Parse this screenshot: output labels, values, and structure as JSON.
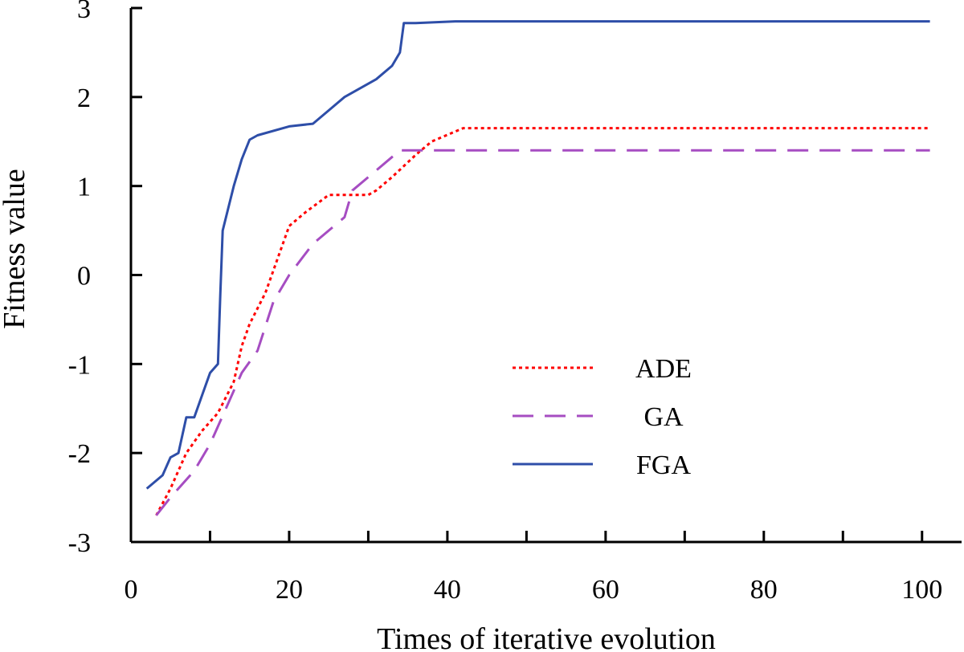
{
  "chart_data": {
    "type": "line",
    "title": "",
    "xlabel": "Times of iterative evolution",
    "ylabel": "Fitness value",
    "xlim": [
      0,
      105
    ],
    "ylim": [
      -3,
      3
    ],
    "xticks": [
      0,
      20,
      40,
      60,
      80,
      100
    ],
    "xtick_labels": [
      "0",
      "20",
      "40",
      "60",
      "80",
      "100"
    ],
    "yticks": [
      -3,
      -2,
      -1,
      0,
      1,
      2,
      3
    ],
    "ytick_labels": [
      "-3",
      "-2",
      "-1",
      "0",
      "1",
      "2",
      "3"
    ],
    "grid": false,
    "legend_position": "lower-right",
    "series": [
      {
        "name": "ADE",
        "color": "#ff0000",
        "style": "dotted",
        "points": [
          [
            3.2,
            -2.7
          ],
          [
            5,
            -2.4
          ],
          [
            7,
            -2.0
          ],
          [
            9,
            -1.75
          ],
          [
            11,
            -1.55
          ],
          [
            13,
            -1.2
          ],
          [
            14,
            -0.8
          ],
          [
            15,
            -0.55
          ],
          [
            17,
            -0.2
          ],
          [
            19,
            0.3
          ],
          [
            20,
            0.55
          ],
          [
            22,
            0.7
          ],
          [
            25,
            0.9
          ],
          [
            30,
            0.9
          ],
          [
            31,
            0.95
          ],
          [
            33,
            1.1
          ],
          [
            36,
            1.35
          ],
          [
            38,
            1.5
          ],
          [
            42,
            1.65
          ],
          [
            101,
            1.65
          ]
        ]
      },
      {
        "name": "GA",
        "color": "#a64dc2",
        "style": "dashed",
        "points": [
          [
            3.2,
            -2.7
          ],
          [
            5,
            -2.5
          ],
          [
            8,
            -2.2
          ],
          [
            10,
            -1.9
          ],
          [
            12,
            -1.5
          ],
          [
            14,
            -1.1
          ],
          [
            16,
            -0.85
          ],
          [
            18,
            -0.3
          ],
          [
            20,
            0.0
          ],
          [
            23,
            0.35
          ],
          [
            27,
            0.65
          ],
          [
            28,
            0.95
          ],
          [
            30,
            1.1
          ],
          [
            34,
            1.4
          ],
          [
            101,
            1.4
          ]
        ]
      },
      {
        "name": "FGA",
        "color": "#2e4ea8",
        "style": "solid",
        "points": [
          [
            2,
            -2.4
          ],
          [
            4,
            -2.25
          ],
          [
            5,
            -2.05
          ],
          [
            6,
            -2.0
          ],
          [
            6.5,
            -1.8
          ],
          [
            7,
            -1.6
          ],
          [
            8,
            -1.6
          ],
          [
            9,
            -1.35
          ],
          [
            10,
            -1.1
          ],
          [
            11,
            -1.0
          ],
          [
            11.3,
            -0.2
          ],
          [
            11.6,
            0.5
          ],
          [
            13,
            1.0
          ],
          [
            14,
            1.3
          ],
          [
            15,
            1.52
          ],
          [
            16,
            1.57
          ],
          [
            20,
            1.67
          ],
          [
            23,
            1.7
          ],
          [
            25,
            1.85
          ],
          [
            27,
            2.0
          ],
          [
            31,
            2.2
          ],
          [
            33,
            2.35
          ],
          [
            34,
            2.5
          ],
          [
            34.5,
            2.83
          ],
          [
            36,
            2.83
          ],
          [
            41,
            2.85
          ],
          [
            101,
            2.85
          ]
        ]
      }
    ]
  }
}
